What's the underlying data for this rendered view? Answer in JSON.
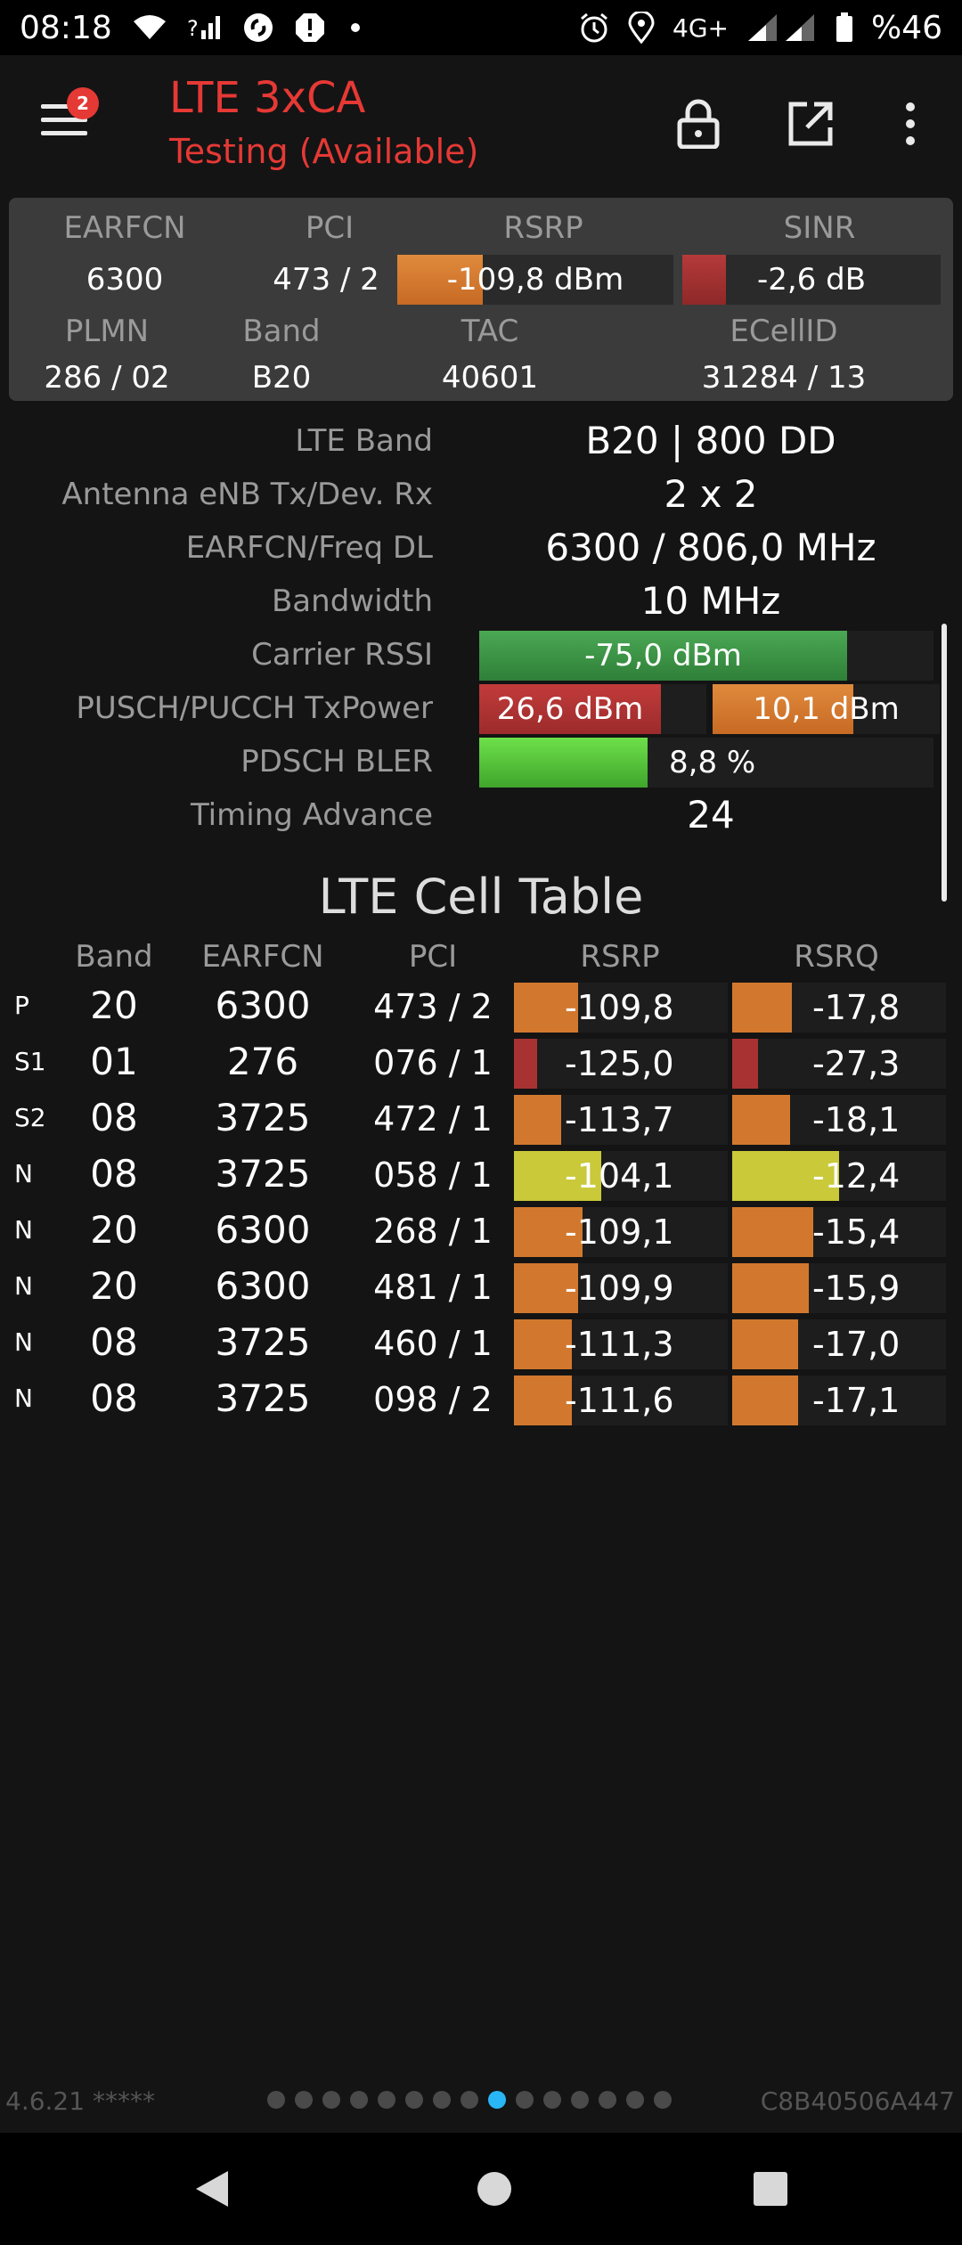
{
  "status_bar": {
    "time": "08:18",
    "network": "4G+",
    "battery": "%46",
    "icons": [
      "wifi-icon",
      "call-signal-icon",
      "shazam-icon",
      "alert-icon",
      "dot-icon",
      "alarm-icon",
      "location-icon",
      "signal-icon",
      "battery-icon"
    ]
  },
  "app_bar": {
    "title": "LTE 3xCA",
    "subtitle": "Testing (Available)",
    "notification_count": "2",
    "icons": [
      "menu-icon",
      "lock-icon",
      "open-external-icon",
      "more-vert-icon"
    ]
  },
  "serving": {
    "headers": {
      "earfcn": "EARFCN",
      "pci": "PCI",
      "rsrp": "RSRP",
      "sinr": "SINR",
      "plmn": "PLMN",
      "band": "Band",
      "tac": "TAC",
      "ecellid": "ECellID"
    },
    "earfcn": "6300",
    "pci": "473 / 2",
    "rsrp": "-109,8 dBm",
    "rsrp_level": 0.31,
    "sinr": "-2,6 dB",
    "sinr_level": 0.17,
    "plmn": "286 / 02",
    "band": "B20",
    "tac": "40601",
    "ecellid": "31284 / 13"
  },
  "details": {
    "lte_band_label": "LTE Band",
    "lte_band": "B20 | 800 DD",
    "antenna_label": "Antenna eNB Tx/Dev. Rx",
    "antenna": "2 x 2",
    "earfcn_freq_label": "EARFCN/Freq DL",
    "earfcn_freq": "6300 / 806,0 MHz",
    "bandwidth_label": "Bandwidth",
    "bandwidth": "10 MHz",
    "rssi_label": "Carrier RSSI",
    "rssi": "-75,0 dBm",
    "rssi_level": 0.81,
    "txpower_label": "PUSCH/PUCCH TxPower",
    "pusch": "26,6 dBm",
    "pusch_level": 0.8,
    "pucch": "10,1 dBm",
    "pucch_level": 0.62,
    "bler_label": "PDSCH BLER",
    "bler": "8,8 %",
    "bler_level": 0.37,
    "timing_advance_label": "Timing Advance",
    "timing_advance": "24"
  },
  "cell_table": {
    "title": "LTE Cell Table",
    "columns": [
      "Band",
      "EARFCN",
      "PCI",
      "RSRP",
      "RSRQ"
    ],
    "rows": [
      {
        "type": "P",
        "band": "20",
        "earfcn": "6300",
        "pci": "473 / 2",
        "rsrp": "-109,8",
        "rsrq": "-17,8",
        "rsrp_level": 0.3,
        "rsrq_level": 0.28,
        "rsrp_color": "#d2782e",
        "rsrq_color": "#d2782e"
      },
      {
        "type": "S1",
        "band": "01",
        "earfcn": "276",
        "pci": "076 / 1",
        "rsrp": "-125,0",
        "rsrq": "-27,3",
        "rsrp_level": 0.11,
        "rsrq_level": 0.12,
        "rsrp_color": "#a83232",
        "rsrq_color": "#a83232"
      },
      {
        "type": "S2",
        "band": "08",
        "earfcn": "3725",
        "pci": "472 / 1",
        "rsrp": "-113,7",
        "rsrq": "-18,1",
        "rsrp_level": 0.22,
        "rsrq_level": 0.27,
        "rsrp_color": "#d2782e",
        "rsrq_color": "#d2782e"
      },
      {
        "type": "N",
        "band": "08",
        "earfcn": "3725",
        "pci": "058 / 1",
        "rsrp": "-104,1",
        "rsrq": "-12,4",
        "rsrp_level": 0.41,
        "rsrq_level": 0.5,
        "rsrp_color": "#c9c93a",
        "rsrq_color": "#c9c93a"
      },
      {
        "type": "N",
        "band": "20",
        "earfcn": "6300",
        "pci": "268 / 1",
        "rsrp": "-109,1",
        "rsrq": "-15,4",
        "rsrp_level": 0.32,
        "rsrq_level": 0.38,
        "rsrp_color": "#d2782e",
        "rsrq_color": "#d2782e"
      },
      {
        "type": "N",
        "band": "20",
        "earfcn": "6300",
        "pci": "481 / 1",
        "rsrp": "-109,9",
        "rsrq": "-15,9",
        "rsrp_level": 0.3,
        "rsrq_level": 0.36,
        "rsrp_color": "#d2782e",
        "rsrq_color": "#d2782e"
      },
      {
        "type": "N",
        "band": "08",
        "earfcn": "3725",
        "pci": "460 / 1",
        "rsrp": "-111,3",
        "rsrq": "-17,0",
        "rsrp_level": 0.27,
        "rsrq_level": 0.31,
        "rsrp_color": "#d2782e",
        "rsrq_color": "#d2782e"
      },
      {
        "type": "N",
        "band": "08",
        "earfcn": "3725",
        "pci": "098 / 2",
        "rsrp": "-111,6",
        "rsrq": "-17,1",
        "rsrp_level": 0.27,
        "rsrq_level": 0.31,
        "rsrp_color": "#d2782e",
        "rsrq_color": "#d2782e"
      }
    ]
  },
  "footer": {
    "version": "4.6.21 *****",
    "device_id": "C8B40506A447",
    "page_count": 15,
    "active_page": 8
  },
  "nav_bar": {
    "icons": [
      "back-icon",
      "home-icon",
      "recents-icon"
    ]
  },
  "colors": {
    "accent_red": "#e53935",
    "orange": "#d2782e",
    "dark_red": "#a83232",
    "yellow": "#c9c93a",
    "green": "#3fa24a",
    "bright_green": "#5fd043",
    "page_active": "#29b6f6"
  }
}
